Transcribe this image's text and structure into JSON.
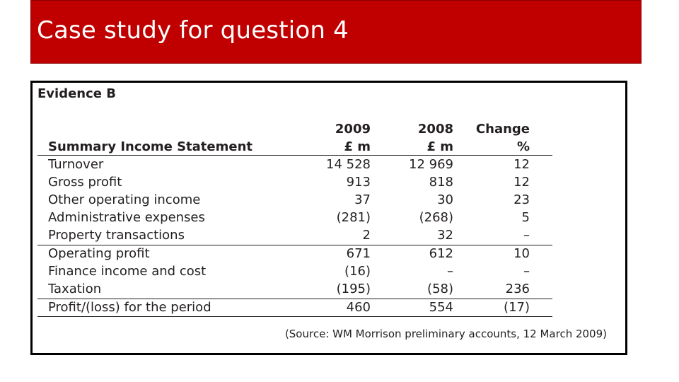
{
  "slide": {
    "title": "Case study for question 4"
  },
  "evidence": {
    "heading": "Evidence B",
    "table": {
      "columns": [
        {
          "top": "",
          "bottom": "Summary Income Statement"
        },
        {
          "top": "2009",
          "bottom": "£ m"
        },
        {
          "top": "2008",
          "bottom": "£ m"
        },
        {
          "top": "Change",
          "bottom": "%"
        }
      ],
      "rows": [
        {
          "label": "Turnover",
          "y2009": "14 528",
          "y2008": "12 969",
          "change": "12"
        },
        {
          "label": "Gross profit",
          "y2009": "913",
          "y2008": "818",
          "change": "12"
        },
        {
          "label": "Other operating income",
          "y2009": "37",
          "y2008": "30",
          "change": "23"
        },
        {
          "label": "Administrative expenses",
          "y2009": "(281)",
          "y2008": "(268)",
          "change": "5"
        },
        {
          "label": "Property transactions",
          "y2009": "2",
          "y2008": "32",
          "change": "–"
        },
        {
          "label": "Operating profit",
          "y2009": "671",
          "y2008": "612",
          "change": "10"
        },
        {
          "label": "Finance income and cost",
          "y2009": "(16)",
          "y2008": "–",
          "change": "–"
        },
        {
          "label": "Taxation",
          "y2009": "(195)",
          "y2008": "(58)",
          "change": "236"
        },
        {
          "label": "Profit/(loss) for the period",
          "y2009": "460",
          "y2008": "554",
          "change": "(17)"
        }
      ]
    },
    "source": "(Source:  WM Morrison preliminary accounts, 12 March 2009)"
  }
}
